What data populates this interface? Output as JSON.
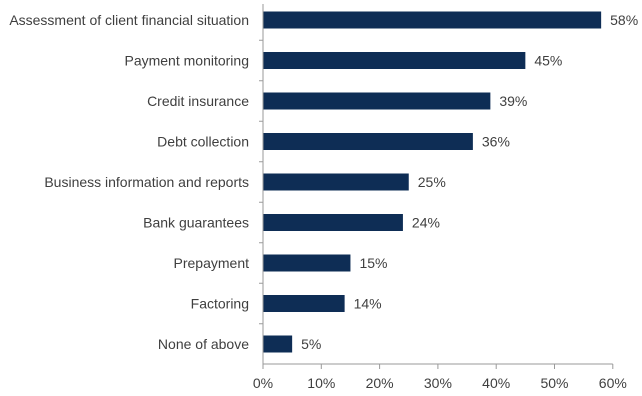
{
  "chart_data": {
    "type": "bar",
    "orientation": "horizontal",
    "categories": [
      "Assessment of client financial situation",
      "Payment monitoring",
      "Credit insurance",
      "Debt collection",
      "Business information and reports",
      "Bank guarantees",
      "Prepayment",
      "Factoring",
      "None of above"
    ],
    "values": [
      58,
      45,
      39,
      36,
      25,
      24,
      15,
      14,
      5
    ],
    "value_labels": [
      "58%",
      "45%",
      "39%",
      "36%",
      "25%",
      "24%",
      "15%",
      "14%",
      "5%"
    ],
    "xticks": [
      "0%",
      "10%",
      "20%",
      "30%",
      "40%",
      "50%",
      "60%"
    ],
    "xlim": [
      0,
      60
    ],
    "grid": false,
    "legend": "none",
    "bar_color": "#0e2d55",
    "text_color": "#3f3f3f",
    "axis_color": "#9a9a9a"
  }
}
